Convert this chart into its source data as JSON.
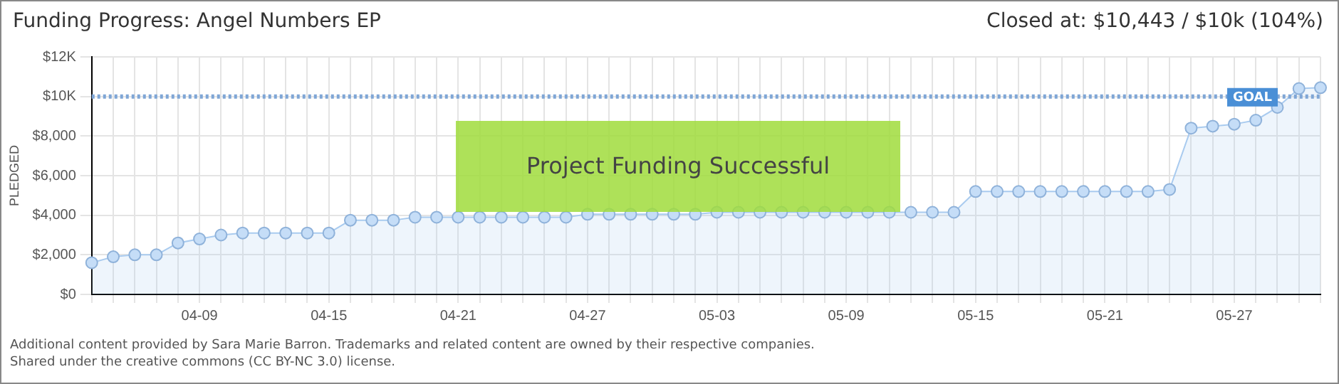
{
  "chart_data": {
    "type": "area",
    "title": "Funding Progress: Angel Numbers EP",
    "subtitle": "Closed at: $10,443 / $10k (104%)",
    "ylabel": "PLEDGED",
    "categories": [
      null,
      null,
      null,
      null,
      null,
      "04-09",
      null,
      null,
      null,
      null,
      null,
      "04-15",
      null,
      null,
      null,
      null,
      null,
      "04-21",
      null,
      null,
      null,
      null,
      null,
      "04-27",
      null,
      null,
      null,
      null,
      null,
      "05-03",
      null,
      null,
      null,
      null,
      null,
      "05-09",
      null,
      null,
      null,
      null,
      null,
      "05-15",
      null,
      null,
      null,
      null,
      null,
      "05-21",
      null,
      null,
      null,
      null,
      null,
      "05-27",
      null,
      null,
      null,
      null
    ],
    "series": [
      {
        "color": "#a9cbef",
        "values": [
          1600,
          1900,
          2000,
          2000,
          2600,
          2800,
          3000,
          3100,
          3100,
          3100,
          3100,
          3100,
          3750,
          3750,
          3750,
          3900,
          3900,
          3900,
          3900,
          3900,
          3900,
          3900,
          3900,
          4050,
          4050,
          4050,
          4050,
          4050,
          4050,
          4150,
          4150,
          4150,
          4150,
          4150,
          4150,
          4150,
          4150,
          4150,
          4150,
          4150,
          4150,
          5200,
          5200,
          5200,
          5200,
          5200,
          5200,
          5200,
          5200,
          5200,
          5300,
          8400,
          8500,
          8600,
          8800,
          9450,
          10400,
          10443
        ]
      }
    ],
    "ylim": [
      0,
      12000
    ],
    "yticks": [
      {
        "value": 0,
        "label": "$0"
      },
      {
        "value": 2000,
        "label": "$2,000"
      },
      {
        "value": 4000,
        "label": "$4,000"
      },
      {
        "value": 6000,
        "label": "$6,000"
      },
      {
        "value": 8000,
        "label": "$8,000"
      },
      {
        "value": 10000,
        "label": "$10K"
      },
      {
        "value": 12000,
        "label": "$12K"
      }
    ],
    "ref_lines": [
      {
        "axis": "y",
        "value": 10000,
        "label": "GOAL",
        "color": "#7fa6d6",
        "line_style": "dotted"
      }
    ],
    "annotations": [
      "Project Funding Successful",
      "Additional content provided by Sara Marie Barron. Trademarks and related content are owned by their respective companies.",
      "Shared under the creative commons (CC BY-NC 3.0) license."
    ],
    "grid": true,
    "legend": false,
    "marker": "circle",
    "line_style": "solid"
  }
}
